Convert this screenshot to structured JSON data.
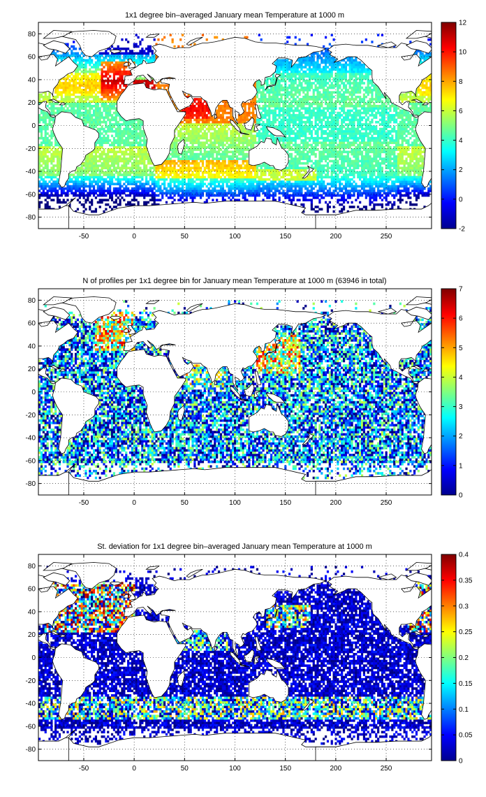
{
  "panels": [
    {
      "title": "1x1 degree bin–averaged January mean Temperature at 1000 m",
      "colorbar": {
        "min": -2,
        "max": 12,
        "ticks": [
          "-2",
          "0",
          "2",
          "4",
          "6",
          "8",
          "10",
          "12"
        ]
      },
      "field": "temperature"
    },
    {
      "title": "N of profiles per 1x1 degree bin for January mean Temperature at 1000 m (63946 in total)",
      "colorbar": {
        "min": 0,
        "max": 7,
        "ticks": [
          "0",
          "1",
          "2",
          "3",
          "4",
          "5",
          "6",
          "7"
        ]
      },
      "field": "count"
    },
    {
      "title": "St. deviation for 1x1 degree bin–averaged January mean Temperature at 1000 m",
      "colorbar": {
        "min": 0,
        "max": 0.4,
        "ticks": [
          "0",
          "0.05",
          "0.1",
          "0.15",
          "0.2",
          "0.25",
          "0.3",
          "0.35",
          "0.4"
        ]
      },
      "field": "stdev"
    }
  ],
  "axes": {
    "xlim": [
      -95,
      295
    ],
    "ylim": [
      -90,
      90
    ],
    "xticks": [
      "-50",
      "0",
      "50",
      "100",
      "150",
      "200",
      "250"
    ],
    "yticks": [
      "80",
      "60",
      "40",
      "20",
      "0",
      "-20",
      "-40",
      "-60",
      "-80"
    ],
    "grid": "dotted"
  },
  "colormap": "jet",
  "colors": {
    "coast": "#000000",
    "grid": "#000000",
    "background": "#ffffff"
  }
}
